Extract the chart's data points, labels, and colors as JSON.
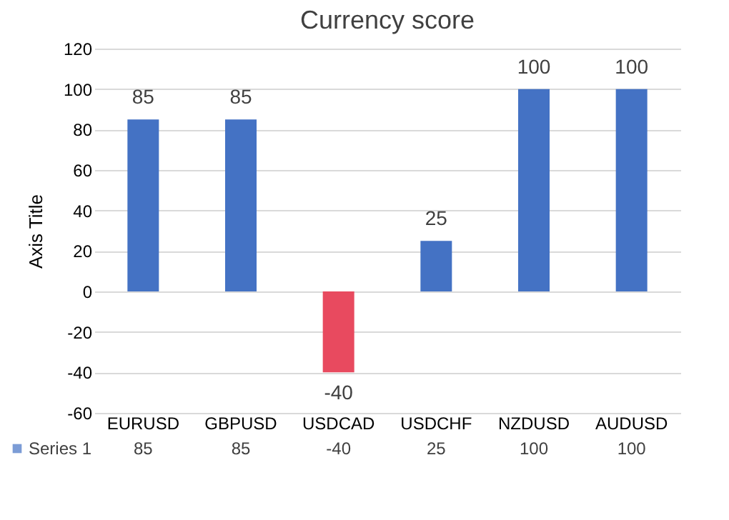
{
  "chart_data": {
    "type": "bar",
    "title": "Currency score",
    "ylabel": "Axis Title",
    "categories": [
      "EURUSD",
      "GBPUSD",
      "USDCAD",
      "USDCHF",
      "NZDUSD",
      "AUDUSD"
    ],
    "series": [
      {
        "name": "Series 1",
        "color": "#4472c4",
        "colors": [
          "#4472c4",
          "#4472c4",
          "#e84a5f",
          "#4472c4",
          "#4472c4",
          "#4472c4"
        ],
        "values": [
          85,
          85,
          -40,
          25,
          100,
          100
        ],
        "value_labels": [
          "85",
          "85",
          "-40",
          "25",
          "100",
          "100"
        ]
      }
    ],
    "ylim": [
      -60,
      120
    ],
    "yticks": [
      -60,
      -40,
      -20,
      0,
      20,
      40,
      60,
      80,
      100,
      120
    ],
    "grid": "y",
    "legend": "bottom",
    "annotations": [
      "85",
      "85",
      "-40",
      "25",
      "100",
      "100"
    ]
  }
}
